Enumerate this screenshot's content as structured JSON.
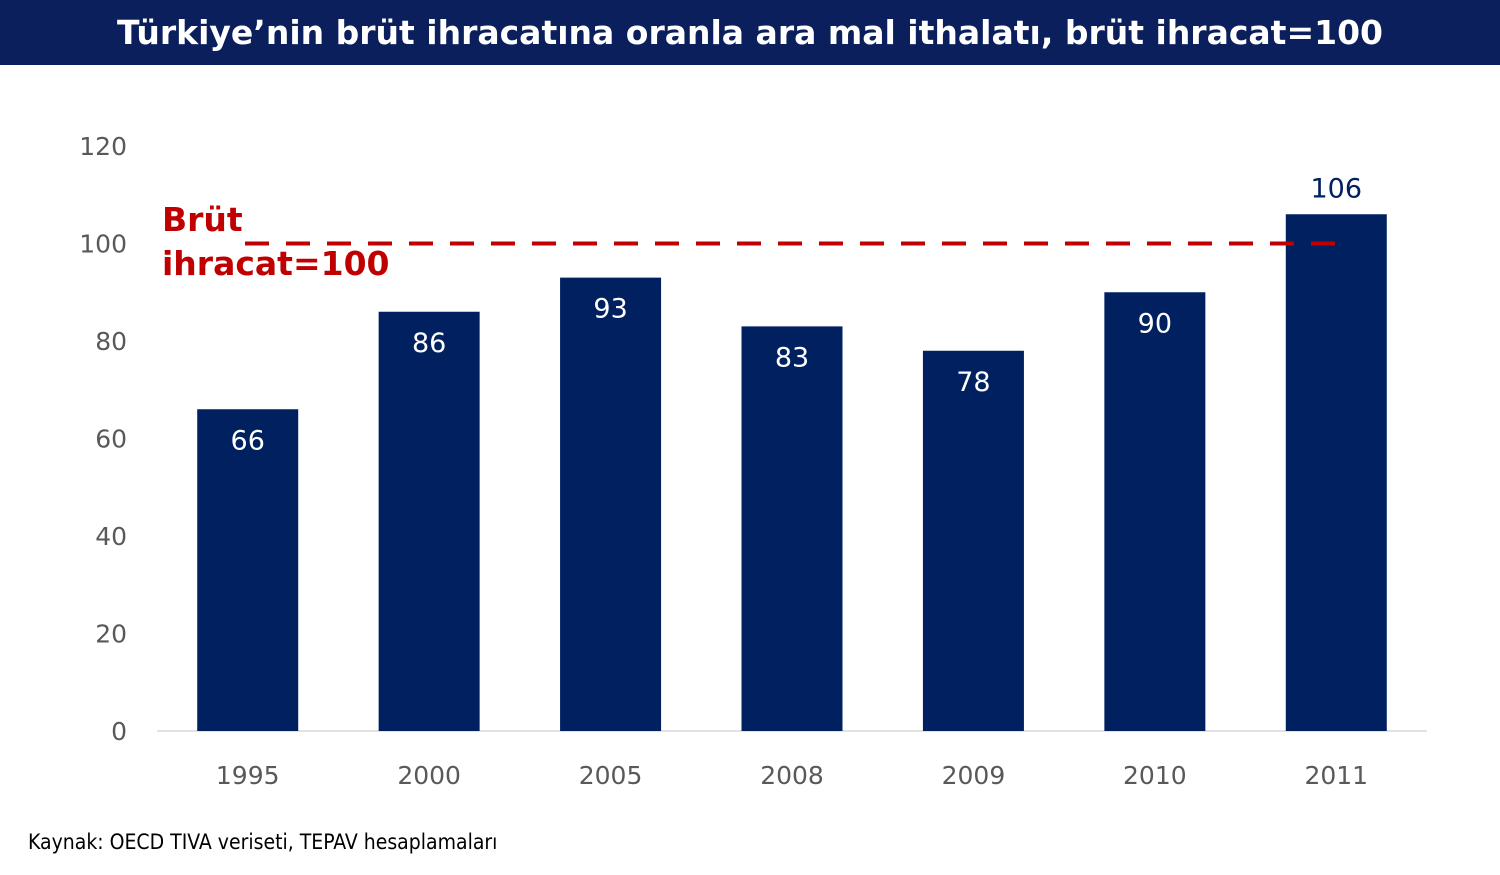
{
  "title": "Türkiye’nin brüt ihracatına oranla ara mal ithalatı, brüt ihracat=100",
  "source": "Kaynak: OECD TIVA veriseti, TEPAV hesaplamaları",
  "colors": {
    "header_bg": "#0a1f5c",
    "bar": "#002060",
    "reference": "#c00000",
    "axis_text": "#595959"
  },
  "chart_data": {
    "type": "bar",
    "categories": [
      "1995",
      "2000",
      "2005",
      "2008",
      "2009",
      "2010",
      "2011"
    ],
    "values": [
      66,
      86,
      93,
      83,
      78,
      90,
      106
    ],
    "data_labels": [
      "66",
      "86",
      "93",
      "83",
      "78",
      "90",
      "106"
    ],
    "ylim": [
      0,
      120
    ],
    "yticks": [
      "0",
      "20",
      "40",
      "60",
      "80",
      "100",
      "120"
    ],
    "grid": false,
    "reference_line": {
      "value": 100,
      "style": "dashed",
      "label_line1": "Brüt",
      "label_line2": "ihracat=100"
    },
    "xlabel": "",
    "ylabel": ""
  }
}
